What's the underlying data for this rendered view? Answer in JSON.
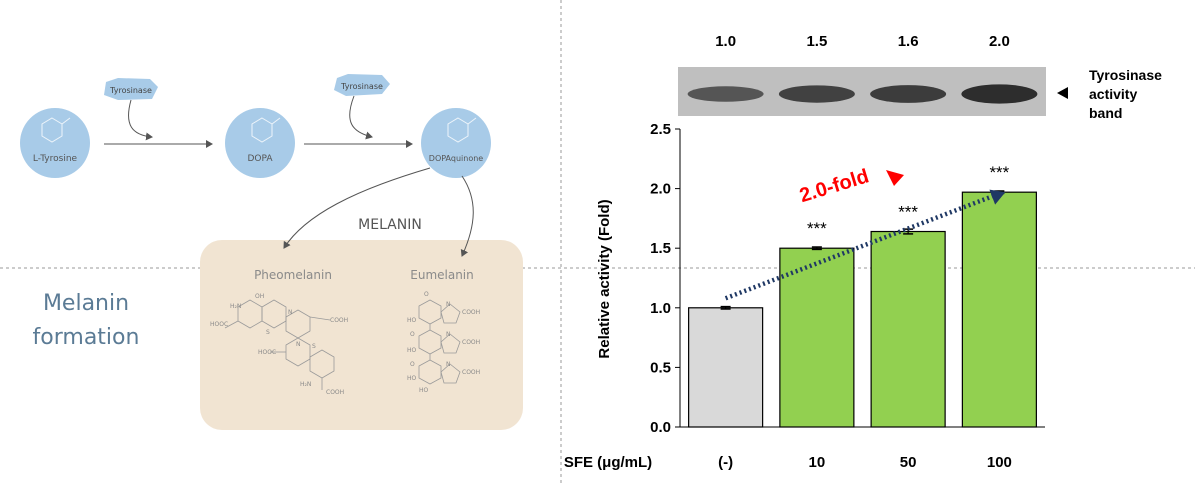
{
  "pathway": {
    "enzyme_1": "Tyrosinase",
    "enzyme_2": "Tyrosinase",
    "nodes": [
      "L-Tyrosine",
      "DOPA",
      "DOPAquinone"
    ],
    "melanin_label": "MELANIN",
    "types": [
      "Pheomelanin",
      "Eumelanin"
    ],
    "side_title_line1": "Melanin",
    "side_title_line2": "formation",
    "pheo_groups": [
      "H₂N",
      "OH",
      "HOOC",
      "S",
      "N",
      "COOH",
      "H₂N",
      "S",
      "N",
      "COOH",
      "HOOC"
    ],
    "eu_groups": [
      "O",
      "HO",
      "O",
      "HO",
      "N",
      "COOH",
      "O",
      "HO",
      "N",
      "COOH",
      "HO",
      "N",
      "COOH"
    ]
  },
  "blot": {
    "values": [
      "1.0",
      "1.5",
      "1.6",
      "2.0"
    ],
    "label_line1": "Tyrosinase",
    "label_line2": "activity",
    "label_line3": "band",
    "marker_icon": "left-triangle"
  },
  "colors": {
    "control_bar": "#d9d9d9",
    "treated_bar": "#92d050",
    "trend_arrow": "#1f3864",
    "fold_text": "#ff0000",
    "circle": "#a8cbe8",
    "melanin_box": "#f1e4d2"
  },
  "chart_data": {
    "type": "bar",
    "categories": [
      "(-)",
      "10",
      "50",
      "100"
    ],
    "values": [
      1.0,
      1.5,
      1.64,
      1.97
    ],
    "errors": [
      0.01,
      0.01,
      0.02,
      0.01
    ],
    "significance": [
      "",
      "***",
      "***",
      "***"
    ],
    "ylabel": "Relative activity (Fold)",
    "xlabel": "SFE (μg/mL)",
    "ylim": [
      0.0,
      2.5
    ],
    "yticks": [
      "0.0",
      "0.5",
      "1.0",
      "1.5",
      "2.0",
      "2.5"
    ],
    "annotation": "2.0-fold",
    "trend": {
      "from_value": 1.08,
      "to_value": 1.97
    }
  }
}
